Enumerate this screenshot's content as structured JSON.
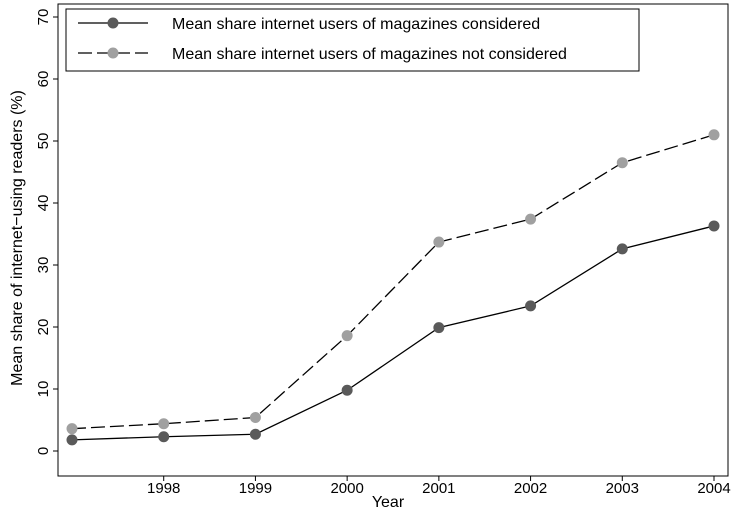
{
  "chart_data": {
    "type": "line",
    "title": "",
    "xlabel": "Year",
    "ylabel": "Mean share of internet−using readers (%)",
    "x": [
      1997,
      1998,
      1999,
      2000,
      2001,
      2002,
      2003,
      2004
    ],
    "x_tick_labels": [
      "1998",
      "1999",
      "2000",
      "2001",
      "2002",
      "2003",
      "2004"
    ],
    "x_tick_values": [
      1998,
      1999,
      2000,
      2001,
      2002,
      2003,
      2004
    ],
    "xlim": [
      1997,
      2004
    ],
    "ylim": [
      0,
      70
    ],
    "y_ticks": [
      0,
      10,
      20,
      30,
      40,
      50,
      60,
      70
    ],
    "grid": false,
    "legend_position": "top-left",
    "series": [
      {
        "name": "Mean share internet users of magazines considered",
        "values": [
          1.8,
          2.3,
          2.7,
          9.8,
          19.9,
          23.4,
          32.6,
          36.3
        ],
        "line_style": "solid",
        "line_color": "#000000",
        "marker_color": "#5a5a5a"
      },
      {
        "name": "Mean share internet users of magazines not considered",
        "values": [
          3.6,
          4.4,
          5.4,
          18.6,
          33.7,
          37.4,
          46.5,
          51.0
        ],
        "line_style": "dashed",
        "line_color": "#000000",
        "marker_color": "#a0a0a0"
      }
    ]
  }
}
